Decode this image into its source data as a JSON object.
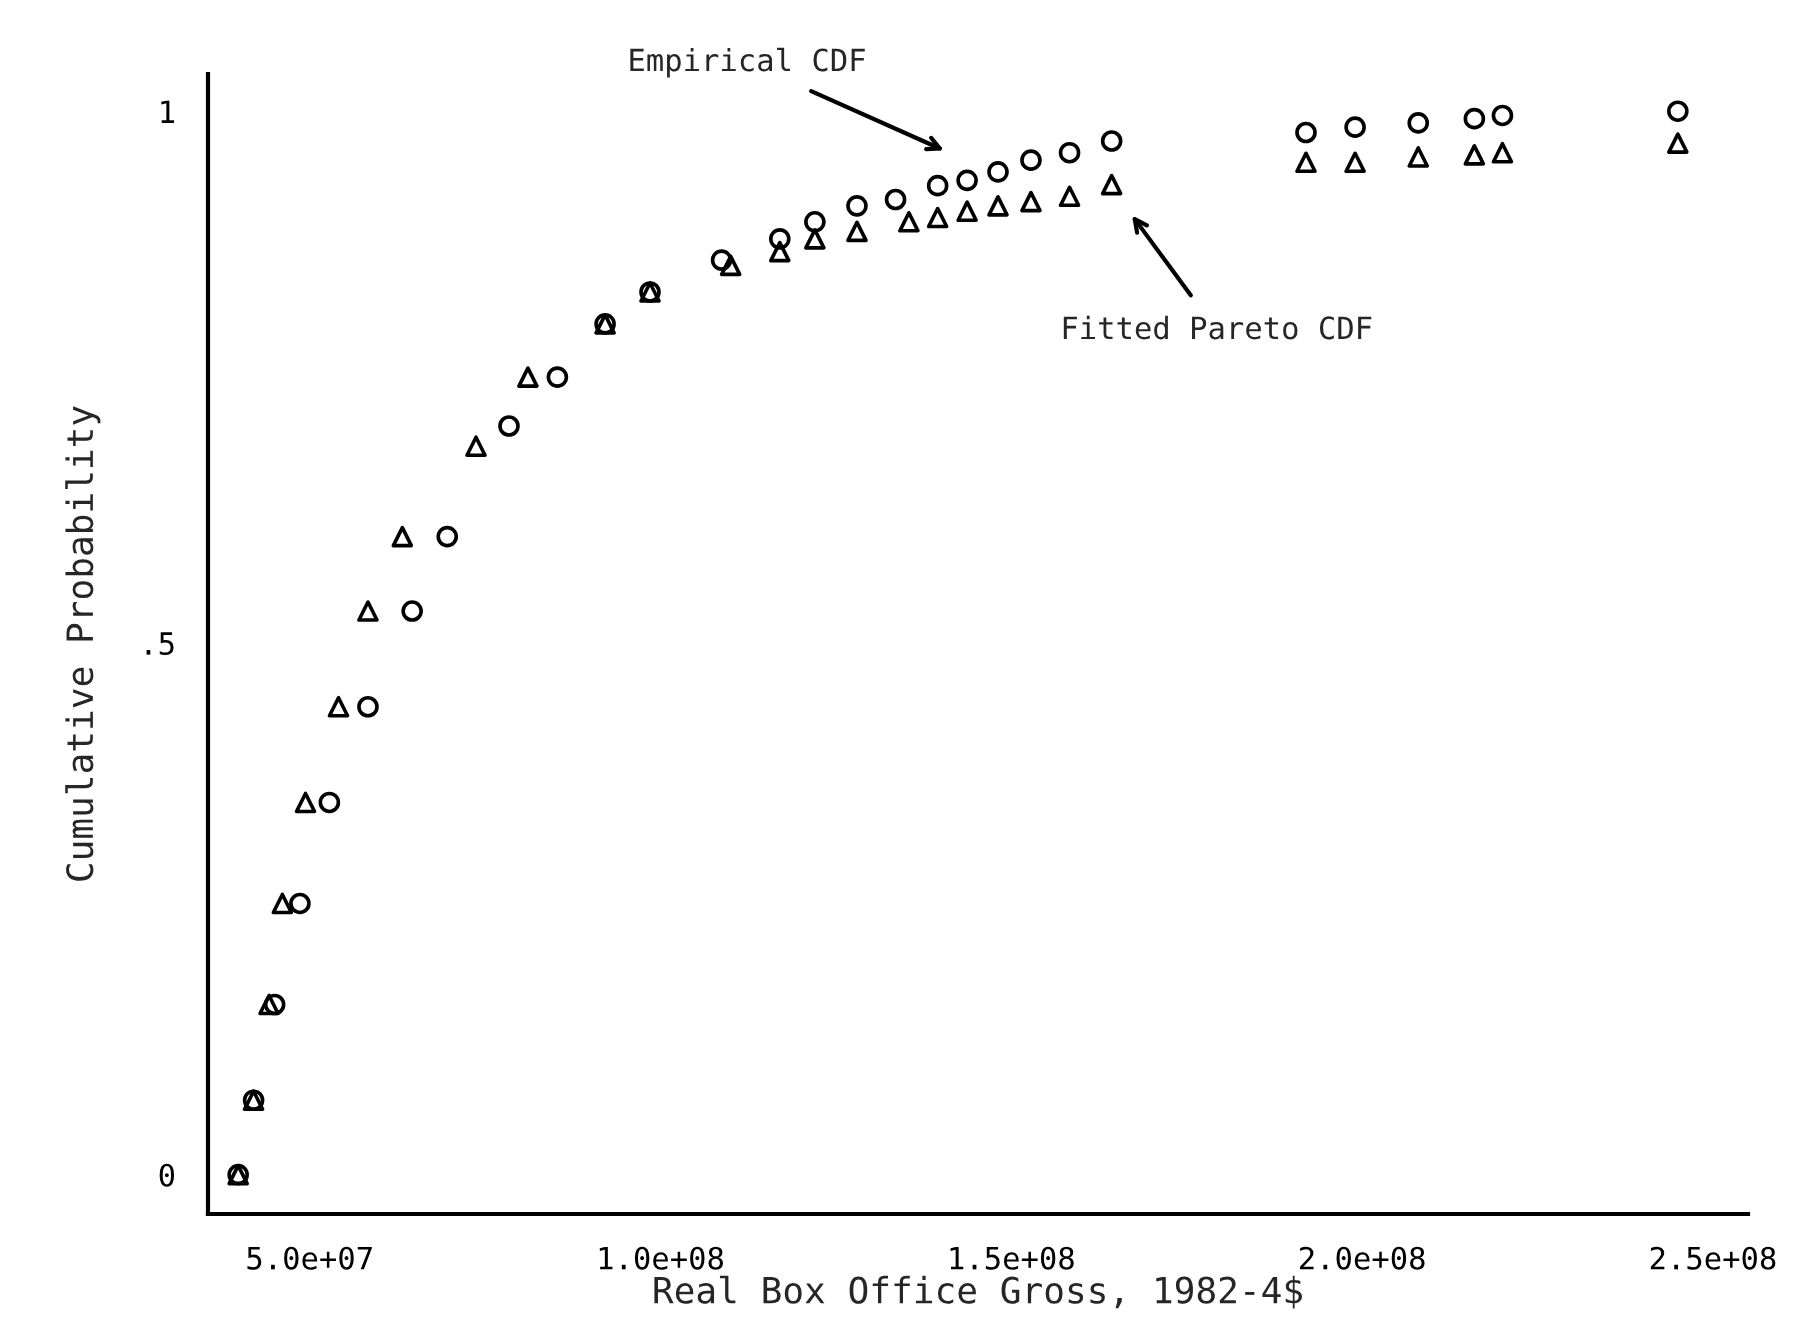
{
  "chart_data": {
    "type": "scatter",
    "xlabel": "Real Box Office Gross, 1982-4$",
    "ylabel": "Cumulative Probability",
    "xlim": [
      35500000,
      255000000
    ],
    "ylim": [
      -0.037,
      1.035
    ],
    "xticks": [
      {
        "value": 50000000,
        "label": "5.0e+07"
      },
      {
        "value": 100000000,
        "label": "1.0e+08"
      },
      {
        "value": 150000000,
        "label": "1.5e+08"
      },
      {
        "value": 200000000,
        "label": "2.0e+08"
      },
      {
        "value": 250000000,
        "label": "2.5e+08"
      }
    ],
    "yticks": [
      0,
      {
        "value": 0.5,
        "label": ".5"
      },
      1
    ],
    "grid": false,
    "legend": false,
    "annotations": [
      "Empirical CDF",
      "Fitted Pareto CDF"
    ],
    "series": [
      {
        "color": "#000000",
        "marker": "circle",
        "x": [
          39800000,
          42000000,
          45000000,
          48600000,
          52800000,
          58300000,
          64600000,
          69600000,
          78400000,
          85300000,
          92100000,
          98500000,
          108700000,
          117000000,
          122000000,
          128000000,
          133500000,
          139500000,
          143700000,
          148100000,
          152800000,
          158300000,
          164300000,
          192000000,
          199000000,
          208000000,
          216000000,
          220000000,
          245000000
        ],
        "values": [
          0.0,
          0.07,
          0.16,
          0.255,
          0.35,
          0.44,
          0.53,
          0.6,
          0.704,
          0.75,
          0.8,
          0.83,
          0.86,
          0.88,
          0.896,
          0.911,
          0.917,
          0.93,
          0.935,
          0.943,
          0.954,
          0.961,
          0.972,
          0.98,
          0.985,
          0.989,
          0.993,
          0.996,
          1.0
        ]
      },
      {
        "color": "#000000",
        "marker": "triangle",
        "x": [
          39800000,
          42000000,
          44200000,
          46100000,
          49400000,
          54100000,
          58300000,
          63200000,
          73700000,
          81100000,
          92100000,
          98500000,
          110000000,
          117000000,
          122000000,
          128000000,
          135400000,
          139500000,
          143700000,
          148100000,
          152800000,
          158300000,
          164300000,
          192000000,
          199000000,
          208000000,
          216000000,
          220000000,
          245000000
        ],
        "values": [
          0.0,
          0.07,
          0.16,
          0.255,
          0.35,
          0.44,
          0.53,
          0.6,
          0.685,
          0.75,
          0.8,
          0.83,
          0.855,
          0.868,
          0.88,
          0.887,
          0.896,
          0.9,
          0.906,
          0.911,
          0.915,
          0.92,
          0.931,
          0.952,
          0.952,
          0.957,
          0.959,
          0.961,
          0.97
        ]
      }
    ]
  }
}
